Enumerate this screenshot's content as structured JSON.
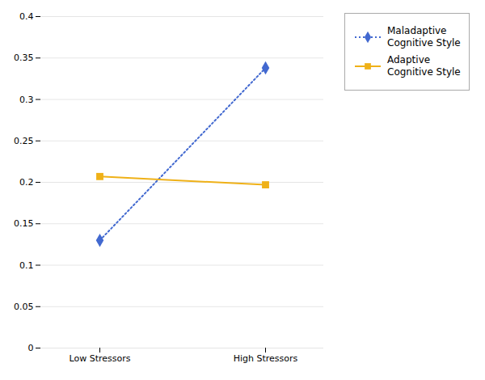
{
  "chart_data": {
    "type": "line",
    "categories": [
      "Low Stressors",
      "High Stressors"
    ],
    "series": [
      {
        "name": "Maladaptive\nCognitive Style",
        "values": [
          0.13,
          0.338
        ],
        "marker": "diamond",
        "line_style": "dotted"
      },
      {
        "name": "Adaptive\nCognitive Style",
        "values": [
          0.207,
          0.197
        ],
        "marker": "square",
        "line_style": "solid"
      }
    ],
    "ylim": [
      0,
      0.4
    ],
    "yticks": [
      0,
      0.05,
      0.1,
      0.15,
      0.2,
      0.25,
      0.3,
      0.35,
      0.4
    ],
    "grid": true
  }
}
